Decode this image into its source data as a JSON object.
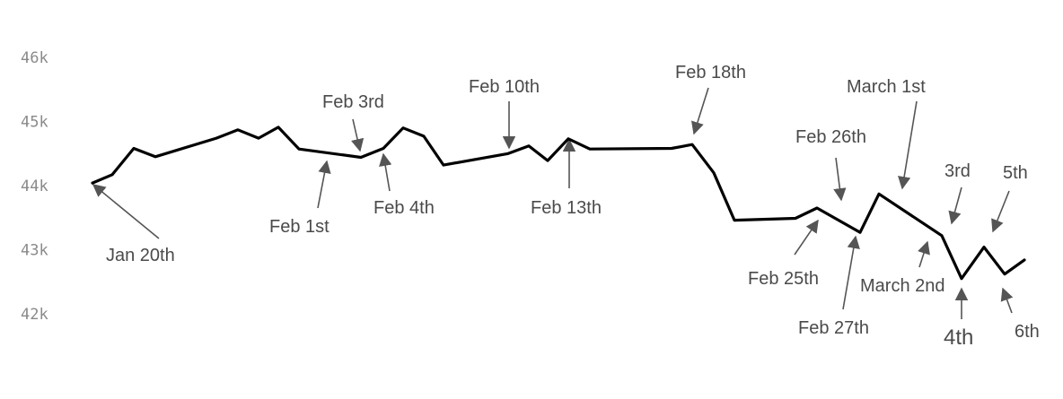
{
  "chart_data": {
    "type": "line",
    "title": "",
    "xlabel": "",
    "ylabel": "",
    "ylim": [
      42000,
      46000
    ],
    "y_ticks": [
      "46k",
      "45k",
      "44k",
      "43k",
      "42k"
    ],
    "y_tick_values": [
      46000,
      45000,
      44000,
      43000,
      42000
    ],
    "grid": false,
    "line_color": "#000000",
    "series": [
      {
        "values": [
          44040,
          44170,
          44580,
          44450,
          44740,
          44870,
          44740,
          44910,
          44570,
          44440,
          44580,
          44900,
          44770,
          44320,
          44500,
          44620,
          44390,
          44730,
          44570,
          44580,
          44640,
          44200,
          43460,
          43490,
          43650,
          43270,
          43870,
          43220,
          42550,
          43040,
          42620,
          42840
        ]
      }
    ],
    "annotations": [
      {
        "label": "Jan 20th"
      },
      {
        "label": "Feb 1st"
      },
      {
        "label": "Feb 3rd"
      },
      {
        "label": "Feb 4th"
      },
      {
        "label": "Feb 10th"
      },
      {
        "label": "Feb 13th"
      },
      {
        "label": "Feb 18th"
      },
      {
        "label": "Feb 25th"
      },
      {
        "label": "Feb 26th"
      },
      {
        "label": "Feb 27th"
      },
      {
        "label": "March 1st"
      },
      {
        "label": "March 2nd"
      },
      {
        "label": "3rd"
      },
      {
        "label": "4th"
      },
      {
        "label": "5th"
      },
      {
        "label": "6th"
      }
    ]
  }
}
